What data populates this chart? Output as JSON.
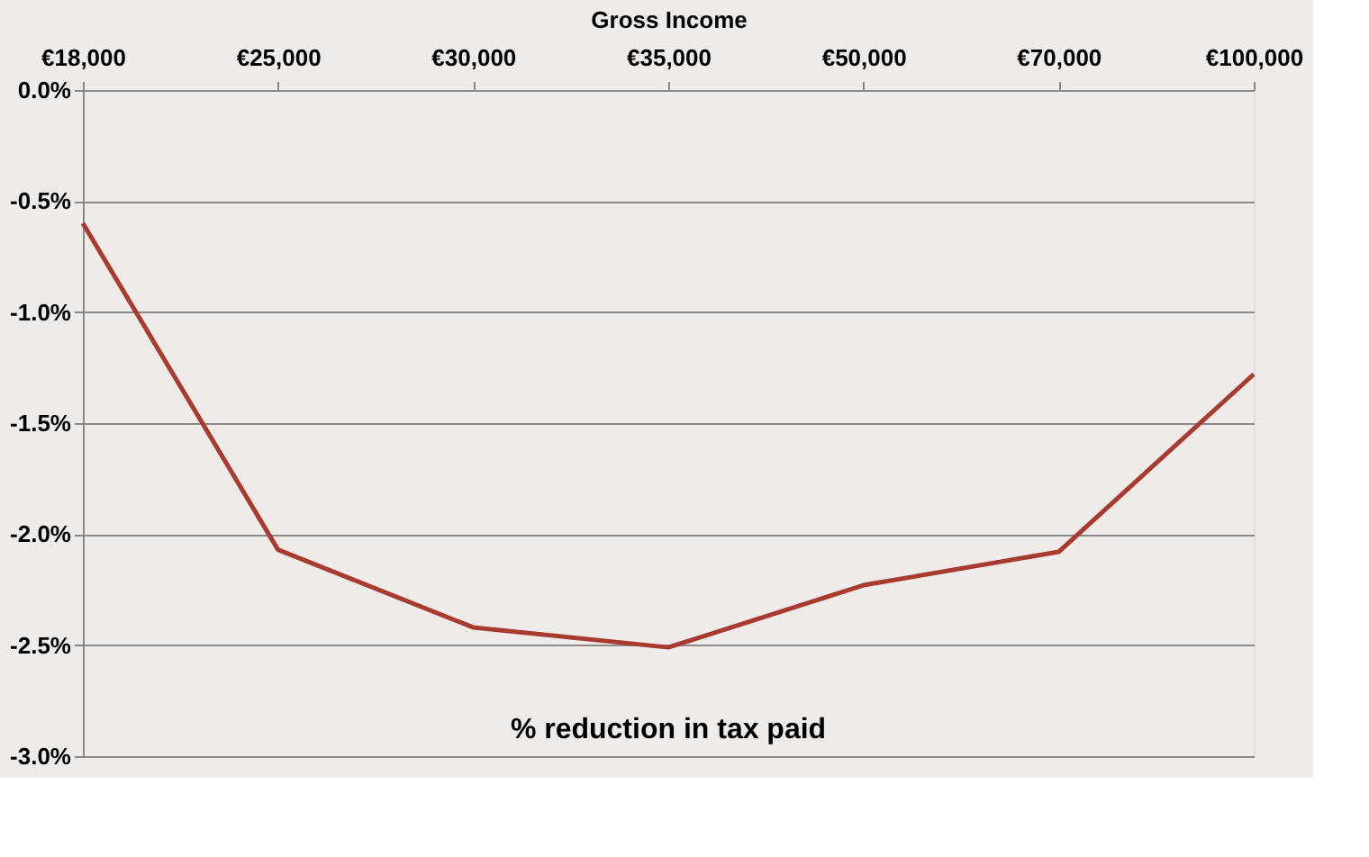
{
  "chart_data": {
    "type": "line",
    "title": "% reduction in tax paid",
    "xlabel": "Gross Income",
    "categories": [
      "€18,000",
      "€25,000",
      "€30,000",
      "€35,000",
      "€50,000",
      "€70,000",
      "€100,000"
    ],
    "series": [
      {
        "color": "#a83a2f",
        "values": [
          -0.6,
          -2.07,
          -2.42,
          -2.51,
          -2.23,
          -2.08,
          -1.28
        ]
      }
    ],
    "ylim": [
      -3.0,
      0.0
    ],
    "yticks": [
      {
        "value": 0.0,
        "label": "0.0%"
      },
      {
        "value": -0.5,
        "label": "-0.5%"
      },
      {
        "value": -1.0,
        "label": "-1.0%"
      },
      {
        "value": -1.5,
        "label": "-1.5%"
      },
      {
        "value": -2.0,
        "label": "-2.0%"
      },
      {
        "value": -2.5,
        "label": "-2.5%"
      },
      {
        "value": -3.0,
        "label": "-3.0%"
      }
    ],
    "grid": "y",
    "legend": false,
    "marker": "none",
    "line_style": "solid"
  }
}
